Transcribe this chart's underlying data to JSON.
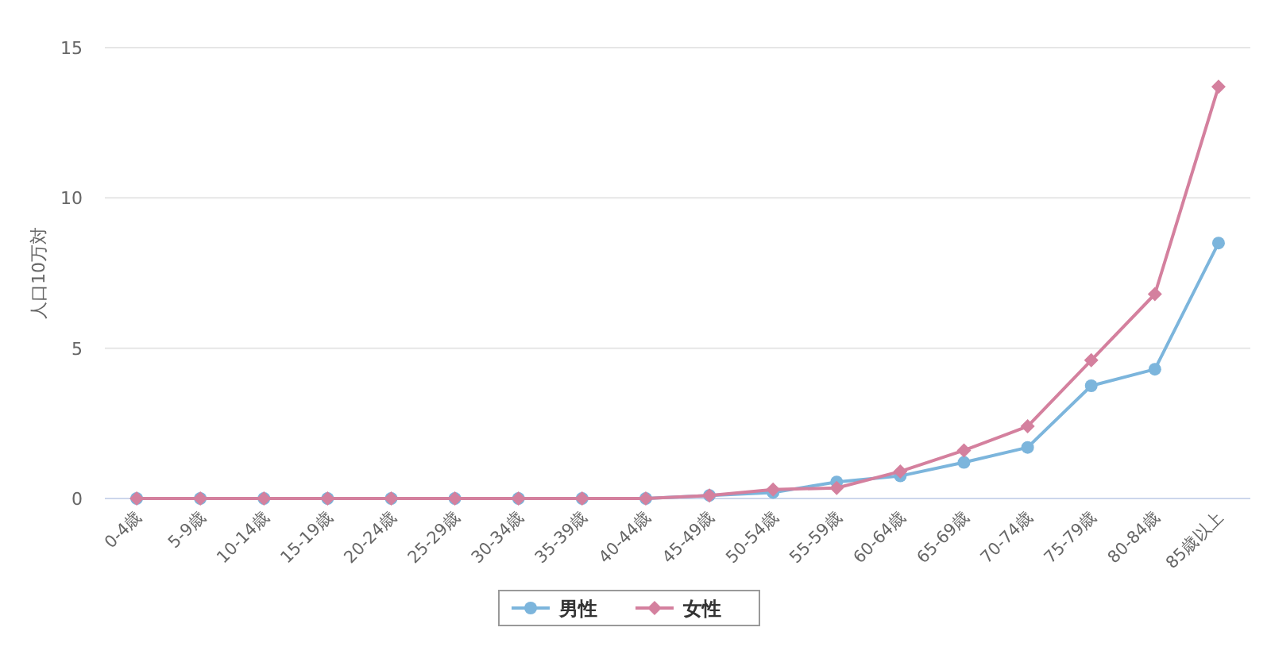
{
  "chart_data": {
    "type": "line",
    "ylabel": "人口10万対",
    "categories": [
      "0-4歳",
      "5-9歳",
      "10-14歳",
      "15-19歳",
      "20-24歳",
      "25-29歳",
      "30-34歳",
      "35-39歳",
      "40-44歳",
      "45-49歳",
      "50-54歳",
      "55-59歳",
      "60-64歳",
      "65-69歳",
      "70-74歳",
      "75-79歳",
      "80-84歳",
      "85歳以上"
    ],
    "series": [
      {
        "name": "男性",
        "color": "#7cb5dc",
        "marker": "circle",
        "values": [
          0,
          0,
          0,
          0,
          0,
          0,
          0,
          0,
          0,
          0.1,
          0.2,
          0.55,
          0.75,
          1.2,
          1.7,
          3.75,
          4.3,
          8.5
        ]
      },
      {
        "name": "女性",
        "color": "#d4809e",
        "marker": "diamond",
        "values": [
          0,
          0,
          0,
          0,
          0,
          0,
          0,
          0,
          0,
          0.1,
          0.3,
          0.35,
          0.9,
          1.6,
          2.4,
          4.6,
          6.8,
          13.7
        ]
      }
    ],
    "ylim": [
      0,
      15
    ],
    "yticks": [
      0,
      5,
      10,
      15
    ],
    "grid": "y",
    "legend": "bottom"
  }
}
